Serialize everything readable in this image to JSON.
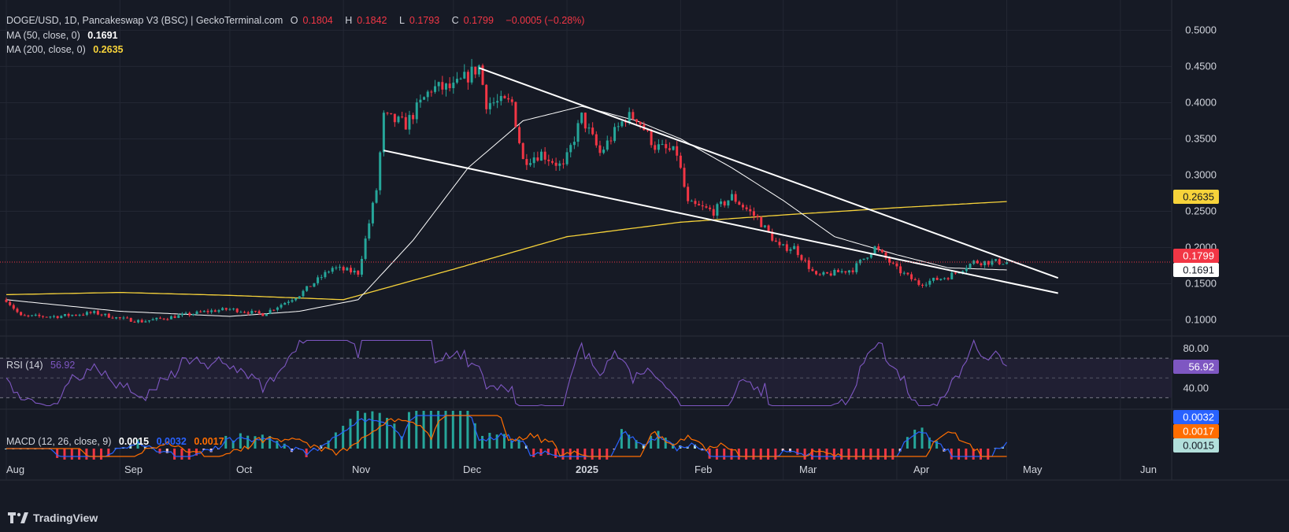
{
  "header": {
    "symbol": "DOGE/USD, 1D, Pancakeswap V3 (BSC) | GeckoTerminal.com",
    "o_label": "O",
    "o_value": "0.1804",
    "h_label": "H",
    "h_value": "0.1842",
    "l_label": "L",
    "l_value": "0.1793",
    "c_label": "C",
    "c_value": "0.1799",
    "change": "−0.0005 (−0.28%)"
  },
  "ma50": {
    "label": "MA (50, close, 0)",
    "value": "0.1691",
    "color": "#ffffff"
  },
  "ma200": {
    "label": "MA (200, close, 0)",
    "value": "0.2635",
    "color": "#f7d33a"
  },
  "rsi": {
    "label": "RSI (14)",
    "value": "56.92",
    "color": "#7e57c2",
    "upper": "80.00",
    "lower": "40.00"
  },
  "macd": {
    "label": "MACD (12, 26, close, 9)",
    "macd_value": "0.0015",
    "signal_value": "0.0032",
    "hist_value": "0.0017"
  },
  "price_axis": [
    "0.5000",
    "0.4500",
    "0.4000",
    "0.3500",
    "0.3000",
    "0.2500",
    "0.2000",
    "0.1500",
    "0.1000"
  ],
  "price_badges": {
    "last": "0.1799",
    "ma200": "0.2635",
    "ma50": "0.1691"
  },
  "macd_badges": {
    "signal": "0.0032",
    "hist": "0.0017",
    "macd": "0.0015"
  },
  "time_axis": [
    "Aug",
    "Sep",
    "Oct",
    "Nov",
    "Dec",
    "2025",
    "Feb",
    "Mar",
    "Apr",
    "May",
    "Jun"
  ],
  "footer": {
    "brand": "TradingView"
  },
  "colors": {
    "up": "#26a69a",
    "down": "#f23645",
    "bg": "#161a25",
    "grid": "#232733",
    "rsi_band": "#2a2440"
  },
  "chart_data": {
    "type": "candlestick",
    "title": "DOGE/USD, 1D, Pancakeswap V3 (BSC) | GeckoTerminal.com",
    "ylim": [
      0.08,
      0.52
    ],
    "x_range": [
      "2024-08-01",
      "2025-06-15"
    ],
    "close_anchors": [
      [
        "2024-08-01",
        0.128
      ],
      [
        "2024-08-05",
        0.105
      ],
      [
        "2024-08-15",
        0.105
      ],
      [
        "2024-08-25",
        0.11
      ],
      [
        "2024-09-01",
        0.102
      ],
      [
        "2024-09-07",
        0.098
      ],
      [
        "2024-09-15",
        0.104
      ],
      [
        "2024-09-25",
        0.112
      ],
      [
        "2024-10-01",
        0.115
      ],
      [
        "2024-10-10",
        0.108
      ],
      [
        "2024-10-20",
        0.135
      ],
      [
        "2024-10-29",
        0.172
      ],
      [
        "2024-11-05",
        0.165
      ],
      [
        "2024-11-10",
        0.28
      ],
      [
        "2024-11-12",
        0.38
      ],
      [
        "2024-11-18",
        0.37
      ],
      [
        "2024-11-25",
        0.42
      ],
      [
        "2024-12-01",
        0.42
      ],
      [
        "2024-12-08",
        0.45
      ],
      [
        "2024-12-10",
        0.4
      ],
      [
        "2024-12-17",
        0.4
      ],
      [
        "2024-12-20",
        0.32
      ],
      [
        "2024-12-25",
        0.33
      ],
      [
        "2024-12-31",
        0.31
      ],
      [
        "2025-01-05",
        0.38
      ],
      [
        "2025-01-10",
        0.33
      ],
      [
        "2025-01-17",
        0.38
      ],
      [
        "2025-01-20",
        0.38
      ],
      [
        "2025-01-25",
        0.34
      ],
      [
        "2025-01-31",
        0.33
      ],
      [
        "2025-02-03",
        0.26
      ],
      [
        "2025-02-10",
        0.25
      ],
      [
        "2025-02-15",
        0.27
      ],
      [
        "2025-02-22",
        0.24
      ],
      [
        "2025-02-28",
        0.2
      ],
      [
        "2025-03-04",
        0.2
      ],
      [
        "2025-03-10",
        0.16
      ],
      [
        "2025-03-20",
        0.17
      ],
      [
        "2025-03-26",
        0.2
      ],
      [
        "2025-04-01",
        0.17
      ],
      [
        "2025-04-07",
        0.15
      ],
      [
        "2025-04-15",
        0.16
      ],
      [
        "2025-04-22",
        0.18
      ],
      [
        "2025-04-25",
        0.18
      ],
      [
        "2025-05-01",
        0.18
      ]
    ],
    "ma50_anchors": [
      [
        "2024-08-01",
        0.128
      ],
      [
        "2024-09-01",
        0.112
      ],
      [
        "2024-10-01",
        0.105
      ],
      [
        "2024-10-20",
        0.112
      ],
      [
        "2024-11-05",
        0.128
      ],
      [
        "2024-11-20",
        0.21
      ],
      [
        "2024-12-05",
        0.31
      ],
      [
        "2024-12-20",
        0.375
      ],
      [
        "2025-01-05",
        0.395
      ],
      [
        "2025-01-20",
        0.375
      ],
      [
        "2025-02-01",
        0.35
      ],
      [
        "2025-02-15",
        0.31
      ],
      [
        "2025-03-01",
        0.265
      ],
      [
        "2025-03-15",
        0.215
      ],
      [
        "2025-04-01",
        0.19
      ],
      [
        "2025-04-15",
        0.172
      ],
      [
        "2025-05-01",
        0.1691
      ]
    ],
    "ma200_anchors": [
      [
        "2024-08-01",
        0.135
      ],
      [
        "2024-09-01",
        0.138
      ],
      [
        "2024-10-01",
        0.134
      ],
      [
        "2024-11-01",
        0.128
      ],
      [
        "2024-12-01",
        0.17
      ],
      [
        "2025-01-01",
        0.215
      ],
      [
        "2025-02-01",
        0.235
      ],
      [
        "2025-03-01",
        0.245
      ],
      [
        "2025-04-01",
        0.255
      ],
      [
        "2025-05-01",
        0.2635
      ]
    ],
    "trendlines": [
      {
        "from": [
          "2024-12-08",
          0.448
        ],
        "to": [
          "2025-05-15",
          0.158
        ]
      },
      {
        "from": [
          "2024-11-12",
          0.334
        ],
        "to": [
          "2025-05-15",
          0.137
        ]
      }
    ],
    "last_price": 0.1799
  }
}
